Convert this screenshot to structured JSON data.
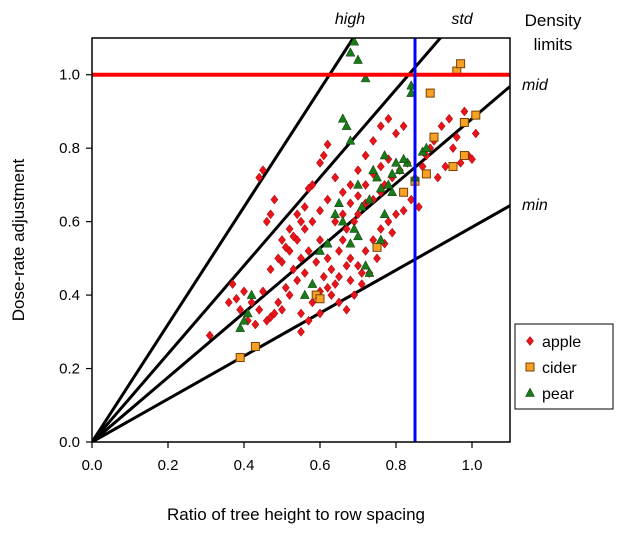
{
  "chart_data": {
    "type": "scatter",
    "xlabel": "Ratio of tree height to row spacing",
    "ylabel": "Dose-rate adjustment",
    "xlim": [
      0,
      1.1
    ],
    "ylim": [
      0,
      1.1
    ],
    "x_ticks": [
      "0.0",
      "0.2",
      "0.4",
      "0.6",
      "0.8",
      "1.0"
    ],
    "y_ticks": [
      "0.0",
      "0.2",
      "0.4",
      "0.6",
      "0.8",
      "1.0"
    ],
    "grid": false,
    "legend_position": "right",
    "density_title": [
      "Density",
      "limits"
    ],
    "reference_lines": [
      {
        "label": "high",
        "slope": 1.6
      },
      {
        "label": "std",
        "slope": 1.2
      },
      {
        "label": "mid",
        "slope": 0.88
      },
      {
        "label": "min",
        "slope": 0.585
      }
    ],
    "hline": {
      "y": 1.0,
      "color": "#ff0000"
    },
    "vline": {
      "x": 0.85,
      "color": "#0000ff"
    },
    "series": [
      {
        "name": "apple",
        "marker": "diamond",
        "color": "#e8141b",
        "points": [
          [
            0.31,
            0.29
          ],
          [
            0.37,
            0.43
          ],
          [
            0.38,
            0.39
          ],
          [
            0.4,
            0.41
          ],
          [
            0.42,
            0.38
          ],
          [
            0.44,
            0.36
          ],
          [
            0.45,
            0.41
          ],
          [
            0.46,
            0.33
          ],
          [
            0.47,
            0.34
          ],
          [
            0.48,
            0.35
          ],
          [
            0.5,
            0.36
          ],
          [
            0.52,
            0.4
          ],
          [
            0.54,
            0.44
          ],
          [
            0.55,
            0.35
          ],
          [
            0.56,
            0.46
          ],
          [
            0.58,
            0.38
          ],
          [
            0.6,
            0.41
          ],
          [
            0.62,
            0.42
          ],
          [
            0.64,
            0.43
          ],
          [
            0.65,
            0.45
          ],
          [
            0.67,
            0.48
          ],
          [
            0.68,
            0.5
          ],
          [
            0.7,
            0.48
          ],
          [
            0.72,
            0.52
          ],
          [
            0.74,
            0.55
          ],
          [
            0.76,
            0.58
          ],
          [
            0.78,
            0.6
          ],
          [
            0.8,
            0.62
          ],
          [
            0.82,
            0.63
          ],
          [
            0.84,
            0.66
          ],
          [
            0.44,
            0.72
          ],
          [
            0.45,
            0.74
          ],
          [
            0.46,
            0.6
          ],
          [
            0.47,
            0.62
          ],
          [
            0.48,
            0.66
          ],
          [
            0.5,
            0.55
          ],
          [
            0.52,
            0.58
          ],
          [
            0.54,
            0.62
          ],
          [
            0.56,
            0.64
          ],
          [
            0.57,
            0.69
          ],
          [
            0.58,
            0.7
          ],
          [
            0.6,
            0.76
          ],
          [
            0.61,
            0.78
          ],
          [
            0.62,
            0.81
          ],
          [
            0.64,
            0.72
          ],
          [
            0.66,
            0.68
          ],
          [
            0.68,
            0.7
          ],
          [
            0.7,
            0.74
          ],
          [
            0.72,
            0.78
          ],
          [
            0.74,
            0.82
          ],
          [
            0.76,
            0.86
          ],
          [
            0.78,
            0.88
          ],
          [
            0.8,
            0.84
          ],
          [
            0.82,
            0.86
          ],
          [
            0.6,
            0.55
          ],
          [
            0.62,
            0.5
          ],
          [
            0.63,
            0.47
          ],
          [
            0.65,
            0.52
          ],
          [
            0.66,
            0.55
          ],
          [
            0.67,
            0.58
          ],
          [
            0.69,
            0.6
          ],
          [
            0.7,
            0.62
          ],
          [
            0.72,
            0.65
          ],
          [
            0.74,
            0.66
          ],
          [
            0.76,
            0.68
          ],
          [
            0.77,
            0.7
          ],
          [
            0.79,
            0.72
          ],
          [
            0.81,
            0.74
          ],
          [
            0.83,
            0.76
          ],
          [
            0.86,
            0.64
          ],
          [
            0.87,
            0.75
          ],
          [
            0.88,
            0.78
          ],
          [
            0.9,
            0.82
          ],
          [
            0.92,
            0.86
          ],
          [
            0.94,
            0.88
          ],
          [
            0.96,
            0.83
          ],
          [
            0.98,
            0.9
          ],
          [
            0.99,
            0.78
          ],
          [
            1.0,
            0.77
          ],
          [
            1.01,
            0.84
          ],
          [
            0.93,
            0.75
          ],
          [
            0.95,
            0.8
          ],
          [
            0.97,
            0.76
          ],
          [
            0.89,
            0.8
          ],
          [
            0.91,
            0.72
          ],
          [
            0.36,
            0.38
          ],
          [
            0.39,
            0.36
          ],
          [
            0.41,
            0.33
          ],
          [
            0.43,
            0.32
          ],
          [
            0.49,
            0.38
          ],
          [
            0.51,
            0.42
          ],
          [
            0.53,
            0.47
          ],
          [
            0.55,
            0.5
          ],
          [
            0.57,
            0.52
          ],
          [
            0.59,
            0.49
          ],
          [
            0.61,
            0.45
          ],
          [
            0.63,
            0.4
          ],
          [
            0.65,
            0.38
          ],
          [
            0.67,
            0.36
          ],
          [
            0.69,
            0.4
          ],
          [
            0.71,
            0.43
          ],
          [
            0.73,
            0.46
          ],
          [
            0.75,
            0.5
          ],
          [
            0.77,
            0.54
          ],
          [
            0.79,
            0.57
          ],
          [
            0.5,
            0.49
          ],
          [
            0.52,
            0.52
          ],
          [
            0.54,
            0.55
          ],
          [
            0.56,
            0.58
          ],
          [
            0.58,
            0.6
          ],
          [
            0.6,
            0.63
          ],
          [
            0.62,
            0.66
          ],
          [
            0.64,
            0.6
          ],
          [
            0.66,
            0.62
          ],
          [
            0.68,
            0.65
          ],
          [
            0.7,
            0.67
          ],
          [
            0.72,
            0.7
          ],
          [
            0.74,
            0.73
          ],
          [
            0.76,
            0.75
          ],
          [
            0.78,
            0.77
          ],
          [
            0.55,
            0.3
          ],
          [
            0.57,
            0.33
          ],
          [
            0.6,
            0.35
          ],
          [
            0.47,
            0.47
          ],
          [
            0.49,
            0.5
          ],
          [
            0.51,
            0.53
          ],
          [
            0.53,
            0.56
          ],
          [
            0.55,
            0.6
          ],
          [
            0.68,
            0.44
          ],
          [
            0.71,
            0.46
          ]
        ]
      },
      {
        "name": "cider",
        "marker": "square",
        "color": "#f6a123",
        "points": [
          [
            0.39,
            0.23
          ],
          [
            0.43,
            0.26
          ],
          [
            0.59,
            0.4
          ],
          [
            0.6,
            0.39
          ],
          [
            0.75,
            0.53
          ],
          [
            0.82,
            0.68
          ],
          [
            0.85,
            0.71
          ],
          [
            0.88,
            0.73
          ],
          [
            0.9,
            0.83
          ],
          [
            0.89,
            0.95
          ],
          [
            0.96,
            1.01
          ],
          [
            0.97,
            1.03
          ],
          [
            0.95,
            0.75
          ],
          [
            0.98,
            0.78
          ],
          [
            0.98,
            0.87
          ],
          [
            1.01,
            0.89
          ]
        ]
      },
      {
        "name": "pear",
        "marker": "triangle",
        "color": "#1a7a1a",
        "points": [
          [
            0.39,
            0.31
          ],
          [
            0.4,
            0.33
          ],
          [
            0.41,
            0.35
          ],
          [
            0.42,
            0.4
          ],
          [
            0.66,
            0.88
          ],
          [
            0.65,
            0.65
          ],
          [
            0.67,
            0.86
          ],
          [
            0.68,
            1.06
          ],
          [
            0.69,
            1.09
          ],
          [
            0.7,
            1.04
          ],
          [
            0.72,
            0.99
          ],
          [
            0.68,
            0.82
          ],
          [
            0.7,
            0.7
          ],
          [
            0.71,
            0.64
          ],
          [
            0.73,
            0.66
          ],
          [
            0.74,
            0.74
          ],
          [
            0.75,
            0.72
          ],
          [
            0.76,
            0.69
          ],
          [
            0.77,
            0.78
          ],
          [
            0.78,
            0.7
          ],
          [
            0.79,
            0.68
          ],
          [
            0.8,
            0.76
          ],
          [
            0.81,
            0.74
          ],
          [
            0.83,
            0.76
          ],
          [
            0.84,
            0.95
          ],
          [
            0.84,
            0.97
          ],
          [
            0.85,
            0.72
          ],
          [
            0.87,
            0.79
          ],
          [
            0.88,
            0.8
          ],
          [
            0.82,
            0.77
          ],
          [
            0.64,
            0.62
          ],
          [
            0.66,
            0.6
          ],
          [
            0.68,
            0.54
          ],
          [
            0.69,
            0.58
          ],
          [
            0.7,
            0.56
          ],
          [
            0.72,
            0.48
          ],
          [
            0.73,
            0.46
          ],
          [
            0.62,
            0.54
          ],
          [
            0.6,
            0.52
          ],
          [
            0.76,
            0.55
          ],
          [
            0.77,
            0.62
          ],
          [
            0.79,
            0.73
          ],
          [
            0.71,
            1.11
          ],
          [
            0.56,
            0.4
          ],
          [
            0.58,
            0.43
          ]
        ]
      }
    ]
  }
}
